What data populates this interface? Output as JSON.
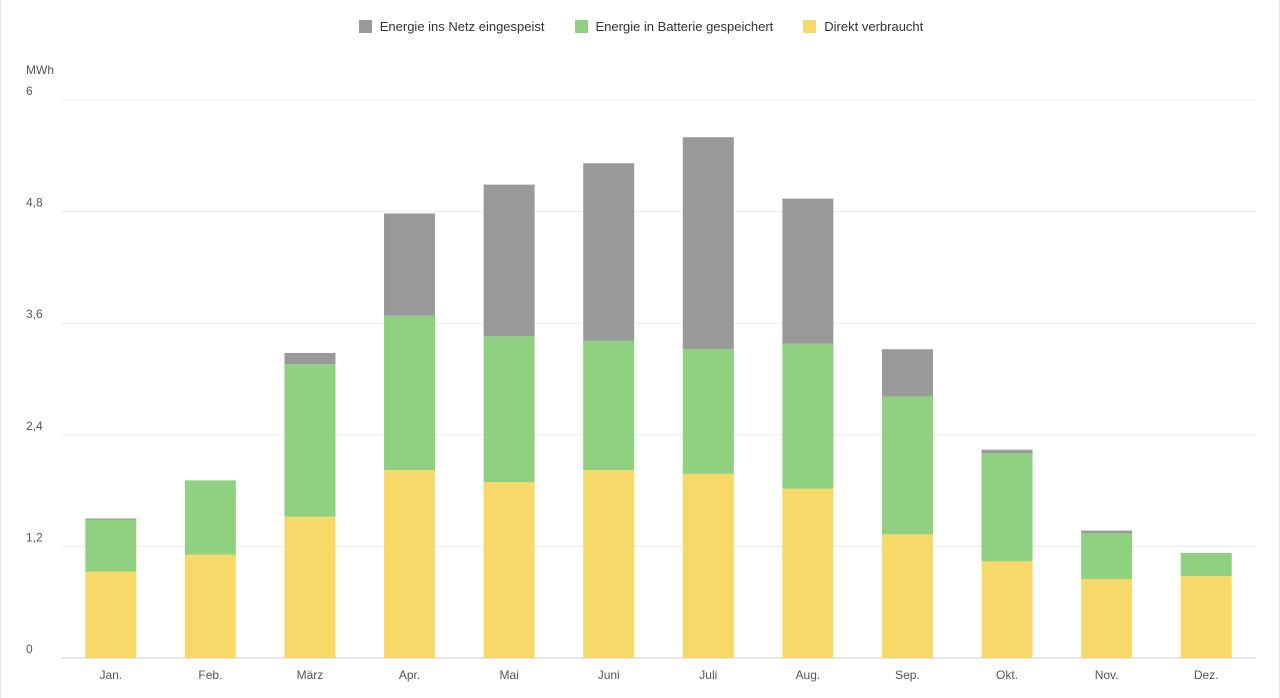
{
  "chart_data": {
    "type": "bar",
    "stacked": true,
    "title": "",
    "xlabel": "",
    "ylabel": "MWh",
    "ylim": [
      0,
      6
    ],
    "yticks": [
      "0",
      "1,2",
      "2,4",
      "3,6",
      "4,8",
      "6"
    ],
    "ytick_values": [
      0,
      1.2,
      2.4,
      3.6,
      4.8,
      6
    ],
    "grid": true,
    "legend_position": "top-center",
    "categories": [
      "Jan.",
      "Feb.",
      "März",
      "Apr.",
      "Mai",
      "Juni",
      "Juli",
      "Aug.",
      "Sep.",
      "Okt.",
      "Nov.",
      "Dez."
    ],
    "series": [
      {
        "name": "Direkt verbraucht",
        "color": "#f7d96a",
        "values": [
          0.93,
          1.11,
          1.52,
          2.02,
          1.89,
          2.02,
          1.98,
          1.82,
          1.33,
          1.04,
          0.85,
          0.88
        ]
      },
      {
        "name": "Energie in Batterie gespeichert",
        "color": "#8fd181",
        "values": [
          0.56,
          0.8,
          1.64,
          1.66,
          1.57,
          1.39,
          1.34,
          1.56,
          1.48,
          1.16,
          0.49,
          0.25
        ]
      },
      {
        "name": "Energie ins Netz eingespeist",
        "color": "#999999",
        "values": [
          0.01,
          0.0,
          0.12,
          1.1,
          1.63,
          1.91,
          2.28,
          1.56,
          0.51,
          0.04,
          0.03,
          0.0
        ]
      }
    ],
    "legend_order": [
      2,
      1,
      0
    ]
  }
}
